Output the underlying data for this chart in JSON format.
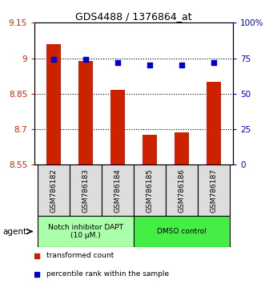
{
  "title": "GDS4488 / 1376864_at",
  "samples": [
    "GSM786182",
    "GSM786183",
    "GSM786184",
    "GSM786185",
    "GSM786186",
    "GSM786187"
  ],
  "bar_values": [
    9.06,
    8.99,
    8.865,
    8.675,
    8.685,
    8.9
  ],
  "percentile_values": [
    74,
    74,
    72,
    70,
    70,
    72
  ],
  "ylim": [
    8.55,
    9.15
  ],
  "yticks": [
    8.55,
    8.7,
    8.85,
    9.0,
    9.15
  ],
  "ytick_labels": [
    "8.55",
    "8.7",
    "8.85",
    "9",
    "9.15"
  ],
  "y2lim": [
    0,
    100
  ],
  "y2ticks": [
    0,
    25,
    50,
    75,
    100
  ],
  "y2tick_labels": [
    "0",
    "25",
    "50",
    "75",
    "100%"
  ],
  "bar_color": "#cc2200",
  "dot_color": "#0000cc",
  "grid_color": "#000000",
  "groups": [
    {
      "label": "Notch inhibitor DAPT\n(10 μM.)",
      "samples": [
        0,
        1,
        2
      ],
      "color": "#aaffaa"
    },
    {
      "label": "DMSO control",
      "samples": [
        3,
        4,
        5
      ],
      "color": "#44ee44"
    }
  ],
  "agent_label": "agent",
  "legend1": "transformed count",
  "legend2": "percentile rank within the sample",
  "bar_width": 0.45
}
